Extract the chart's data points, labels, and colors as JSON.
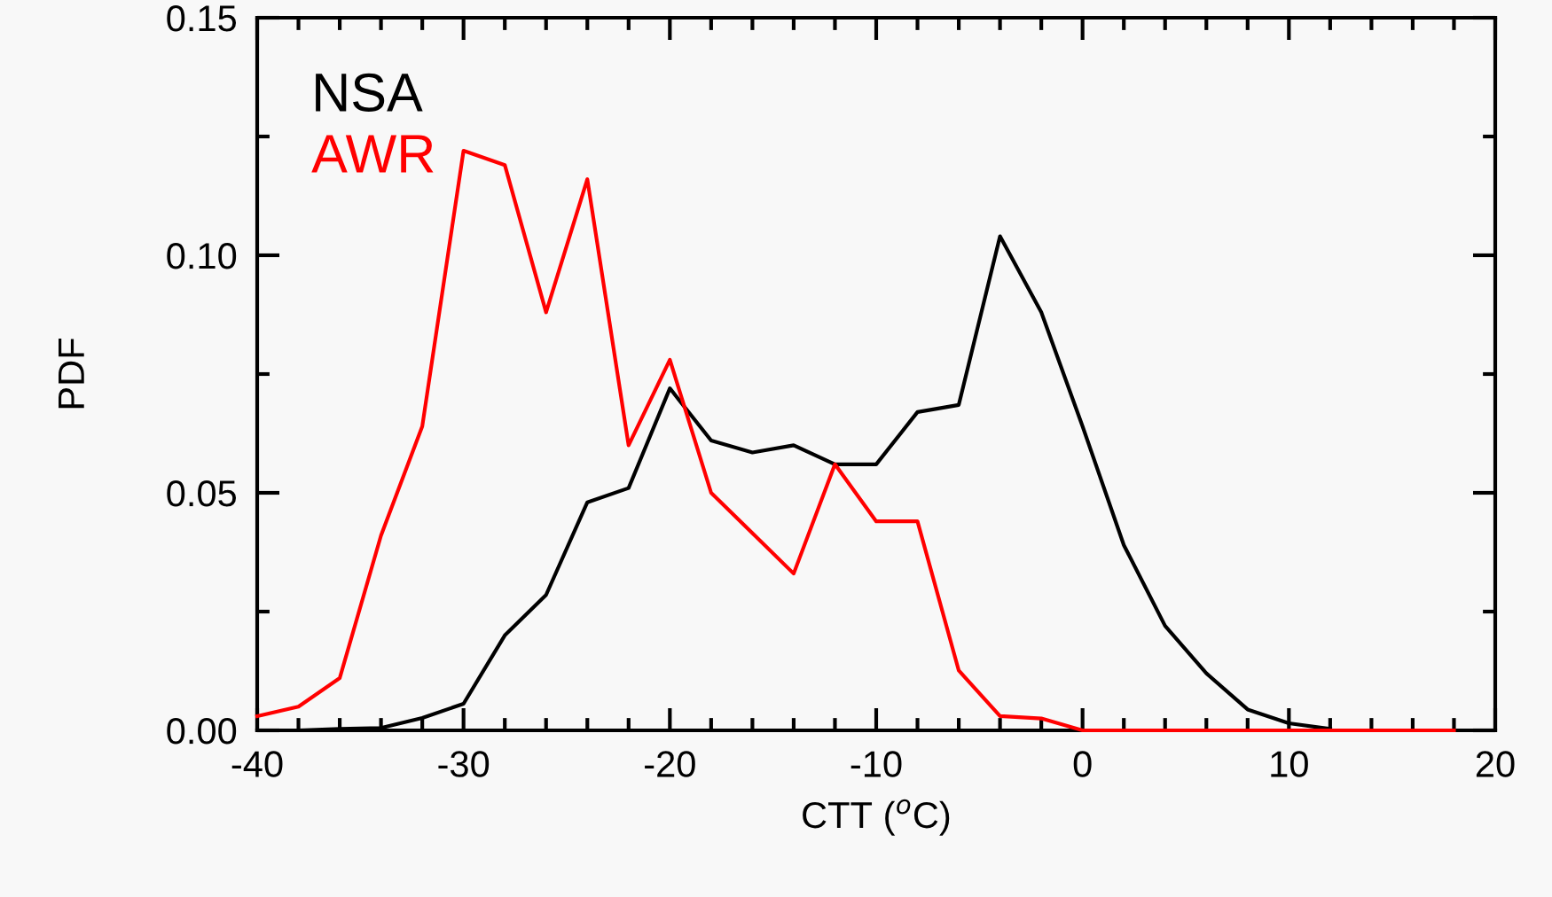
{
  "chart_data": {
    "type": "line",
    "xlabel": "CTT ($^{o}$C)",
    "ylabel": "PDF",
    "x": [
      -40,
      -38,
      -36,
      -34,
      -32,
      -30,
      -28,
      -26,
      -24,
      -22,
      -20,
      -18,
      -16,
      -14,
      -12,
      -10,
      -8,
      -6,
      -4,
      -2,
      0,
      2,
      4,
      6,
      8,
      10,
      12,
      14,
      16,
      18
    ],
    "series": [
      {
        "name": "NSA",
        "color": "#000000",
        "values": [
          0,
          0,
          0.0003,
          0.0005,
          0.0026,
          0.0056,
          0.02,
          0.0285,
          0.048,
          0.051,
          0.072,
          0.061,
          0.0585,
          0.06,
          0.056,
          0.056,
          0.067,
          0.0685,
          0.104,
          0.088,
          0.064,
          0.039,
          0.022,
          0.012,
          0.0044,
          0.0015,
          0.0003,
          null,
          null,
          null
        ]
      },
      {
        "name": "AWR",
        "color": "#ff0000",
        "values": [
          0.003,
          0.005,
          0.011,
          0.041,
          0.064,
          0.122,
          0.119,
          0.088,
          0.116,
          0.06,
          0.078,
          0.05,
          0.0415,
          0.033,
          0.056,
          0.044,
          0.044,
          0.0126,
          0.003,
          0.0025,
          0,
          0,
          0,
          0,
          0,
          0,
          0,
          0,
          0,
          0
        ]
      }
    ],
    "xlim": [
      -40,
      20
    ],
    "xticks": [
      -40,
      -30,
      -20,
      -10,
      0,
      10,
      20
    ],
    "ylim": [
      0,
      0.15
    ],
    "yticks": [
      {
        "value": 0,
        "label": "0.00"
      },
      {
        "value": 0.05,
        "label": "0.05"
      },
      {
        "value": 0.1,
        "label": "0.10"
      },
      {
        "value": 0.15,
        "label": "0.15"
      }
    ],
    "legend": "top left",
    "grid": false,
    "marker": "none",
    "line_style": "solid"
  }
}
